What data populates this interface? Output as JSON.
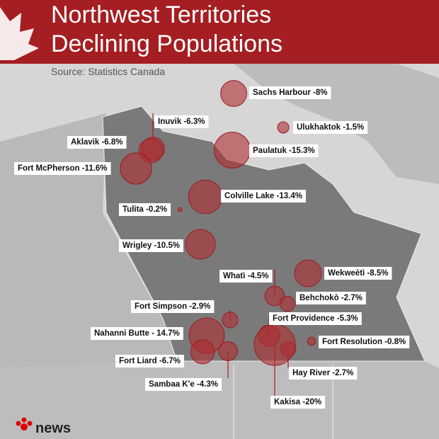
{
  "title": [
    "Northwest Territories",
    "Declining Populations"
  ],
  "source": "Source: Statistics Canada",
  "logo": "news",
  "places": [
    {
      "label": "Sachs Harbour -8%",
      "value": -8
    },
    {
      "label": "Ulukhaktok -1.5%",
      "value": -1.5
    },
    {
      "label": "Inuvik -6.3%",
      "value": -6.3
    },
    {
      "label": "Aklavik -6.8%",
      "value": -6.8
    },
    {
      "label": "Paulatuk -15.3%",
      "value": -15.3
    },
    {
      "label": "Fort McPherson -11.6%",
      "value": -11.6
    },
    {
      "label": "Colville Lake -13.4%",
      "value": -13.4
    },
    {
      "label": "Tulita -0.2%",
      "value": -0.2
    },
    {
      "label": "Wrigley -10.5%",
      "value": -10.5
    },
    {
      "label": "Whatì -4.5%",
      "value": -4.5
    },
    {
      "label": "Wekweètì -8.5%",
      "value": -8.5
    },
    {
      "label": "Behchokò -2.7%",
      "value": -2.7
    },
    {
      "label": "Fort Simpson -2.9%",
      "value": -2.9
    },
    {
      "label": "Fort Providence -5.3%",
      "value": -5.3
    },
    {
      "label": "Nahanni Butte - 14.7%",
      "value": -14.7
    },
    {
      "label": "Fort Resolution -0.8%",
      "value": -0.8
    },
    {
      "label": "Fort Liard -6.7%",
      "value": -6.7
    },
    {
      "label": "Sambaa K'e -4.3%",
      "value": -4.3
    },
    {
      "label": "Hay River -2.7%",
      "value": -2.7
    },
    {
      "label": "Kakisa -20%",
      "value": -20
    }
  ]
}
